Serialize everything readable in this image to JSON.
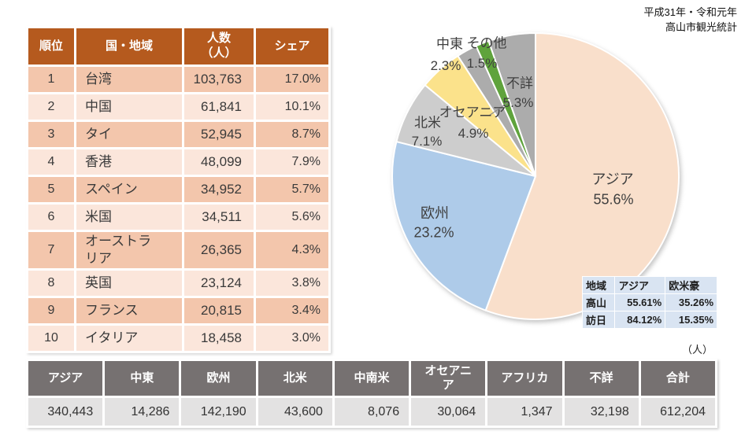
{
  "title": {
    "line1": "平成31年・令和元年",
    "line2": "高山市観光統計"
  },
  "unit_label": "（人）",
  "ranking_table": {
    "headers": {
      "rank": "順位",
      "country": "国・地域",
      "count_line1": "人数",
      "count_line2": "（人）",
      "share": "シェア"
    },
    "rows": [
      {
        "rank": "1",
        "country": "台湾",
        "count": "103,763",
        "share": "17.0%"
      },
      {
        "rank": "2",
        "country": "中国",
        "count": "61,841",
        "share": "10.1%"
      },
      {
        "rank": "3",
        "country": "タイ",
        "count": "52,945",
        "share": "8.7%"
      },
      {
        "rank": "4",
        "country": "香港",
        "count": "48,099",
        "share": "7.9%"
      },
      {
        "rank": "5",
        "country": "スペイン",
        "count": "34,952",
        "share": "5.7%"
      },
      {
        "rank": "6",
        "country": "米国",
        "count": "34,511",
        "share": "5.6%"
      },
      {
        "rank": "7",
        "country": "オーストラリア",
        "count": "26,365",
        "share": "4.3%"
      },
      {
        "rank": "8",
        "country": "英国",
        "count": "23,124",
        "share": "3.8%"
      },
      {
        "rank": "9",
        "country": "フランス",
        "count": "20,815",
        "share": "3.4%"
      },
      {
        "rank": "10",
        "country": "イタリア",
        "count": "18,458",
        "share": "3.0%"
      }
    ]
  },
  "chart_data": {
    "type": "pie",
    "title": "平成31年・令和元年 高山市観光統計",
    "direction": "clockwise",
    "start_angle_deg": 0,
    "slices": [
      {
        "label": "アジア",
        "pct_label": "55.6%",
        "value": 55.6,
        "color": "#F9DFCB"
      },
      {
        "label": "欧州",
        "pct_label": "23.2%",
        "value": 23.2,
        "color": "#AECBE9"
      },
      {
        "label": "北米",
        "pct_label": "7.1%",
        "value": 7.1,
        "color": "#CDCDCD"
      },
      {
        "label": "オセアニア",
        "pct_label": "4.9%",
        "value": 4.9,
        "color": "#FBE28B"
      },
      {
        "label": "中東",
        "pct_label": "2.3%",
        "value": 2.3,
        "color": "#ACACAC"
      },
      {
        "label": "その他",
        "pct_label": "1.5%",
        "value": 1.5,
        "color": "#5FA33C"
      },
      {
        "label": "不詳",
        "pct_label": "5.3%",
        "value": 5.3,
        "color": "#ACACAC"
      }
    ]
  },
  "inset_table": {
    "headers": [
      "地域",
      "アジア",
      "欧米豪"
    ],
    "rows": [
      [
        "高山",
        "55.61%",
        "35.26%"
      ],
      [
        "訪日",
        "84.12%",
        "15.35%"
      ]
    ]
  },
  "totals_table": {
    "headers": [
      "アジア",
      "中東",
      "欧州",
      "北米",
      "中南米",
      "オセアニア",
      "アフリカ",
      "不詳",
      "合計"
    ],
    "values": [
      "340,443",
      "14,286",
      "142,190",
      "43,600",
      "8,076",
      "30,064",
      "1,347",
      "32,198",
      "612,204"
    ]
  }
}
